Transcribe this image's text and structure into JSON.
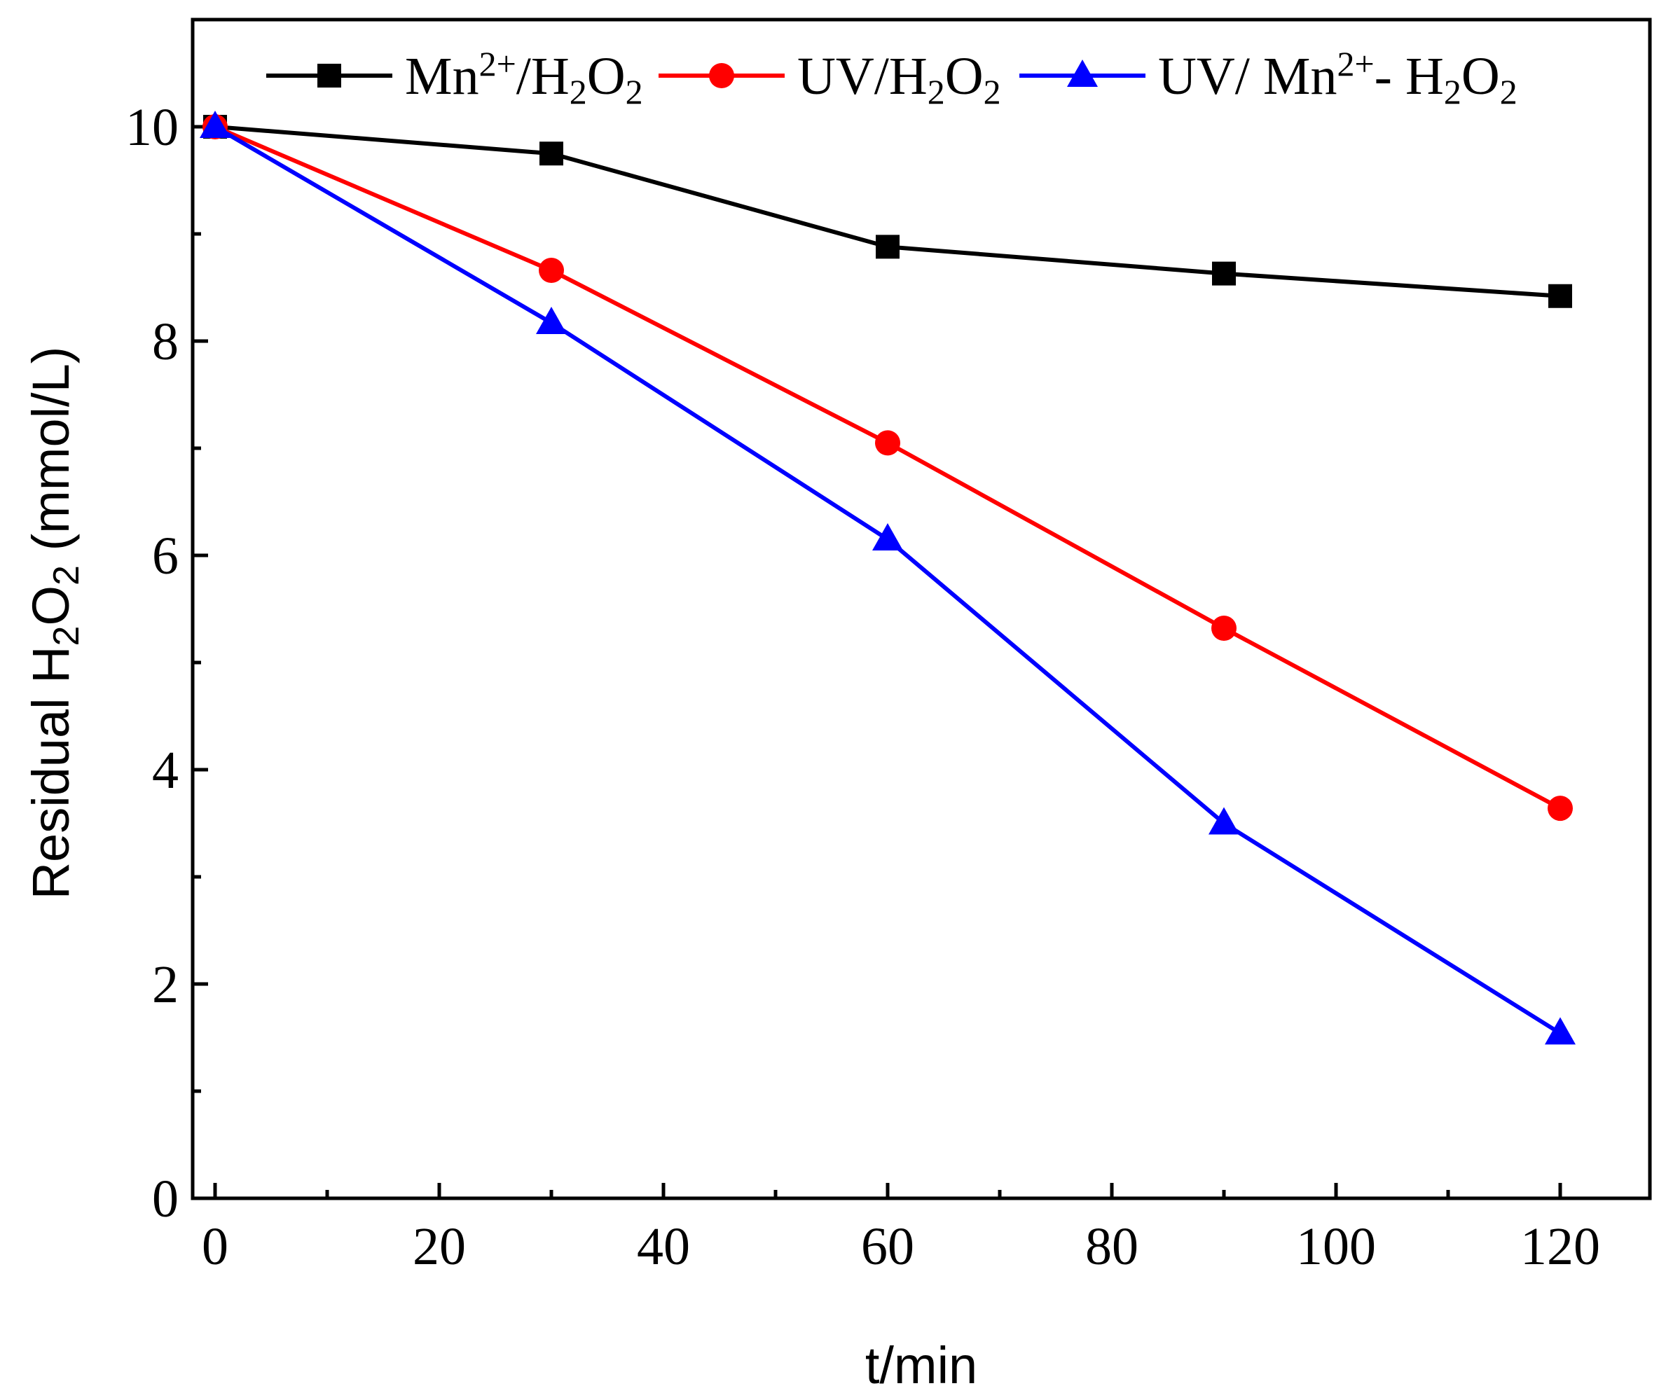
{
  "chart_data": {
    "type": "line",
    "xlabel": "t/min",
    "ylabel": {
      "main": "Residual H",
      "sub1": "2",
      "mid": "O",
      "sub2": "2",
      "unit": " (mmol/L)"
    },
    "xlim": [
      -2,
      128
    ],
    "ylim": [
      0,
      11
    ],
    "xticks": [
      0,
      20,
      40,
      60,
      80,
      100,
      120
    ],
    "yticks": [
      0,
      2,
      4,
      6,
      8,
      10
    ],
    "xminor": [
      10,
      30,
      50,
      70,
      90,
      110
    ],
    "yminor": [
      1,
      3,
      5,
      7,
      9
    ],
    "grid": false,
    "legend_position": "top",
    "series": [
      {
        "name": "Mn2+/H2O2",
        "label_parts": [
          "Mn",
          "2+",
          "/H",
          "2",
          "O",
          "2"
        ],
        "color": "#000000",
        "marker": "square",
        "x": [
          0,
          30,
          60,
          90,
          120
        ],
        "y": [
          10.0,
          9.75,
          8.88,
          8.63,
          8.42
        ]
      },
      {
        "name": "UV/H2O2",
        "label_parts": [
          "UV/H",
          "2",
          "O",
          "2"
        ],
        "color": "#ff0000",
        "marker": "circle",
        "x": [
          0,
          30,
          60,
          90,
          120
        ],
        "y": [
          10.0,
          8.66,
          7.05,
          5.32,
          3.64
        ]
      },
      {
        "name": "UV/ Mn2+- H2O2",
        "label_parts": [
          "UV/ Mn",
          "2+",
          "- H",
          "2",
          "O",
          "2"
        ],
        "color": "#0000ff",
        "marker": "triangle",
        "x": [
          0,
          30,
          60,
          90,
          120
        ],
        "y": [
          10.0,
          8.17,
          6.15,
          3.5,
          1.54
        ]
      }
    ]
  }
}
